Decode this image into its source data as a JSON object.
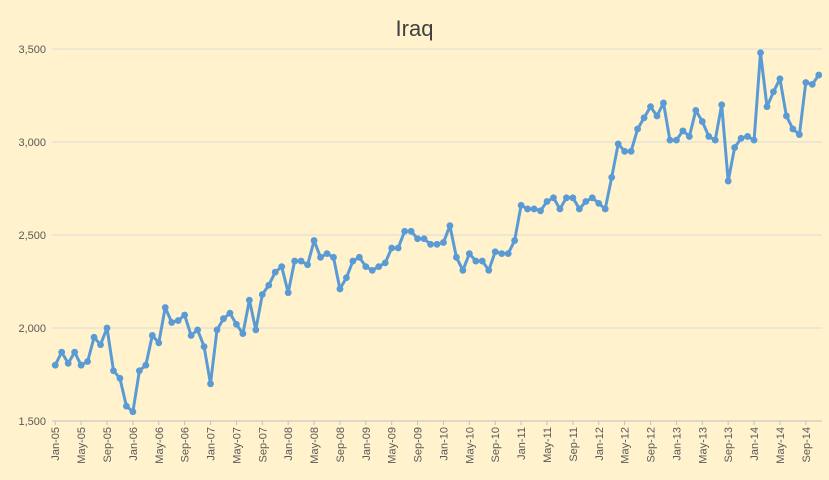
{
  "chart_data": {
    "type": "line",
    "title": "Iraq",
    "xlabel": "",
    "ylabel": "",
    "ylim": [
      1500,
      3500
    ],
    "yticks": [
      1500,
      2000,
      2500,
      3000,
      3500
    ],
    "ytick_labels": [
      "1,500",
      "2,000",
      "2,500",
      "3,000",
      "3,500"
    ],
    "grid": "horizontal",
    "legend": "none",
    "line_color": "#5b9bd5",
    "xtick_labels": [
      "Jan-05",
      "May-05",
      "Sep-05",
      "Jan-06",
      "May-06",
      "Sep-06",
      "Jan-07",
      "May-07",
      "Sep-07",
      "Jan-08",
      "May-08",
      "Sep-08",
      "Jan-09",
      "May-09",
      "Sep-09",
      "Jan-10",
      "May-10",
      "Sep-10",
      "Jan-11",
      "May-11",
      "Sep-11",
      "Jan-12",
      "May-12",
      "Sep-12",
      "Jan-13",
      "May-13",
      "Sep-13",
      "Jan-14",
      "May-14",
      "Sep-14"
    ],
    "series": [
      {
        "values": [
          1800,
          1870,
          1810,
          1870,
          1800,
          1820,
          1950,
          1910,
          2000,
          1770,
          1730,
          1580,
          1550,
          1770,
          1800,
          1960,
          1920,
          2110,
          2030,
          2040,
          2070,
          1960,
          1990,
          1900,
          1700,
          1990,
          2050,
          2080,
          2020,
          1970,
          2150,
          1990,
          2180,
          2230,
          2300,
          2330,
          2190,
          2360,
          2360,
          2340,
          2470,
          2380,
          2400,
          2380,
          2210,
          2270,
          2360,
          2380,
          2330,
          2310,
          2330,
          2350,
          2430,
          2430,
          2520,
          2520,
          2480,
          2480,
          2450,
          2450,
          2460,
          2550,
          2380,
          2310,
          2400,
          2360,
          2360,
          2310,
          2410,
          2400,
          2400,
          2470,
          2660,
          2640,
          2640,
          2630,
          2680,
          2700,
          2640,
          2700,
          2700,
          2640,
          2680,
          2700,
          2670,
          2640,
          2810,
          2990,
          2950,
          2950,
          3070,
          3130,
          3190,
          3140,
          3210,
          3010,
          3010,
          3060,
          3030,
          3170,
          3110,
          3030,
          3010,
          3200,
          2790,
          2970,
          3020,
          3030,
          3010,
          3480,
          3190,
          3270,
          3340,
          3140,
          3070,
          3040,
          3320,
          3310,
          3360
        ]
      }
    ]
  }
}
